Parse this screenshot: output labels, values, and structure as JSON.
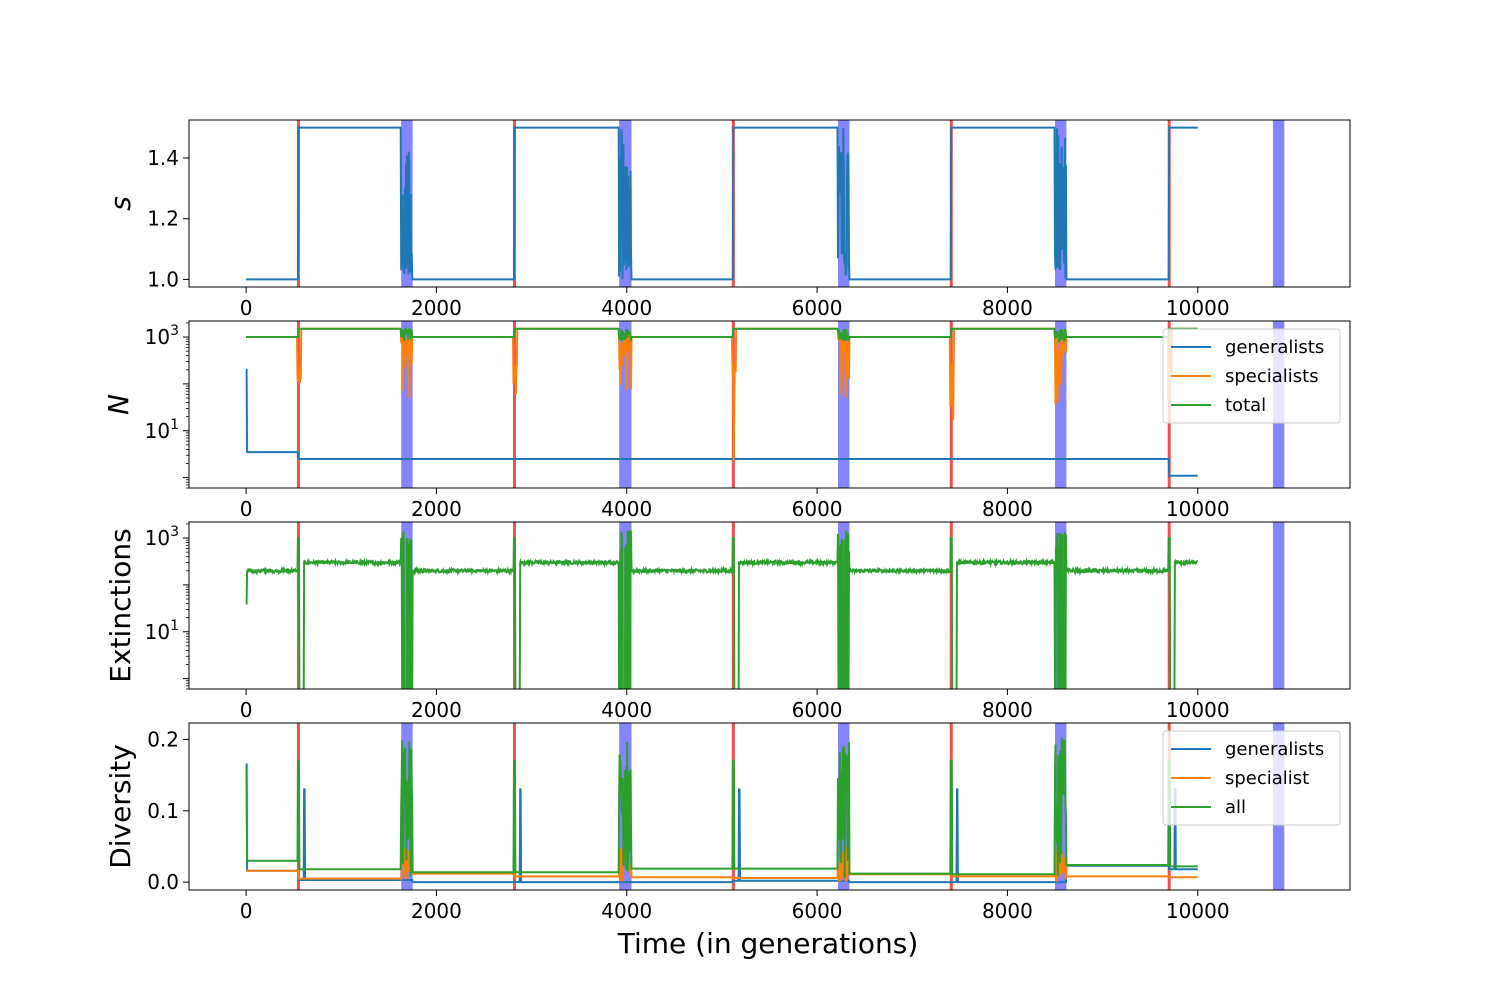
{
  "colors": {
    "generalists": "#1f77b4",
    "specialists": "#ff7f0e",
    "total": "#2ca02c",
    "red_marker": "#f05050",
    "blue_band": "#6666ff"
  },
  "chart_data": [
    {
      "type": "line",
      "id": "s",
      "ylabel": "s",
      "ylabel_italic": true,
      "yscale": "linear",
      "xlim": [
        -600,
        11600
      ],
      "ylim": [
        0.975,
        1.525
      ],
      "yticks": [
        1.0,
        1.2,
        1.4
      ],
      "ytick_labels": [
        "1.0",
        "1.2",
        "1.4"
      ],
      "xticks": [
        0,
        2000,
        4000,
        6000,
        8000,
        10000
      ],
      "xtick_labels": [
        "0",
        "2000",
        "4000",
        "6000",
        "8000",
        "10000"
      ],
      "legend": null,
      "series": [
        {
          "name": "",
          "color_key": "generalists",
          "low": 1.0,
          "high": 1.5,
          "noise_frac": 0.0
        }
      ]
    },
    {
      "type": "line",
      "id": "N",
      "ylabel": "N",
      "ylabel_italic": true,
      "yscale": "log",
      "xlim": [
        -600,
        11600
      ],
      "ylim": [
        0.6,
        2200
      ],
      "yticks": [
        10,
        1000
      ],
      "ytick_labels": [
        "10^1",
        "10^3"
      ],
      "xticks": [
        0,
        2000,
        4000,
        6000,
        8000,
        10000
      ],
      "xtick_labels": [
        "0",
        "2000",
        "4000",
        "6000",
        "8000",
        "10000"
      ],
      "legend": {
        "position": "upper right",
        "entries": [
          "generalists",
          "specialists",
          "total"
        ]
      },
      "series": [
        {
          "name": "generalists",
          "color_key": "generalists",
          "low": 1.5,
          "high": 1.5
        },
        {
          "name": "specialists",
          "color_key": "specialists",
          "low": 1000,
          "high": 1500
        },
        {
          "name": "total",
          "color_key": "total",
          "low": 1000,
          "high": 1500
        }
      ]
    },
    {
      "type": "line",
      "id": "ext",
      "ylabel": "Extinctions",
      "ylabel_italic": false,
      "yscale": "log",
      "xlim": [
        -600,
        11600
      ],
      "ylim": [
        0.6,
        2200
      ],
      "yticks": [
        10,
        1000
      ],
      "ytick_labels": [
        "10^1",
        "10^3"
      ],
      "xticks": [
        0,
        2000,
        4000,
        6000,
        8000,
        10000
      ],
      "xtick_labels": [
        "0",
        "2000",
        "4000",
        "6000",
        "8000",
        "10000"
      ],
      "legend": null,
      "series": [
        {
          "name": "",
          "color_key": "total",
          "low": 200,
          "high": 300
        }
      ]
    },
    {
      "type": "line",
      "id": "div",
      "ylabel": "Diversity",
      "ylabel_italic": false,
      "yscale": "linear",
      "xlim": [
        -600,
        11600
      ],
      "ylim": [
        -0.011,
        0.223
      ],
      "yticks": [
        0.0,
        0.1,
        0.2
      ],
      "ytick_labels": [
        "0.0",
        "0.1",
        "0.2"
      ],
      "xticks": [
        0,
        2000,
        4000,
        6000,
        8000,
        10000
      ],
      "xtick_labels": [
        "0",
        "2000",
        "4000",
        "6000",
        "8000",
        "10000"
      ],
      "xlabel": "Time (in generations)",
      "legend": {
        "position": "upper right",
        "entries": [
          "generalists",
          "specialist",
          "all"
        ]
      },
      "series": [
        {
          "name": "generalists",
          "color_key": "generalists"
        },
        {
          "name": "specialist",
          "color_key": "specialists"
        },
        {
          "name": "all",
          "color_key": "total"
        }
      ]
    }
  ],
  "red_markers_x": [
    550,
    2820,
    5120,
    7410,
    9700
  ],
  "blue_bands": [
    [
      1630,
      1750
    ],
    [
      3920,
      4050
    ],
    [
      6220,
      6340
    ],
    [
      8500,
      8620
    ],
    [
      10790,
      10910
    ]
  ],
  "segments": {
    "low_phase_starts": [
      1750,
      4050,
      6340,
      8620
    ],
    "high_phase_starts": [
      550,
      2820,
      5120,
      7410,
      9700
    ],
    "end": 10000,
    "generalist_N_low": [
      3.5,
      2.5,
      2.5,
      2.5,
      2.5,
      2.5,
      2.5,
      2.5,
      2.5,
      1.1
    ],
    "diversity_all": [
      0.03,
      0.018,
      0.014,
      0.014,
      0.019,
      0.019,
      0.012,
      0.011,
      0.024,
      0.022,
      0.014
    ],
    "diversity_gen": [
      0.016,
      0.003,
      0.0,
      0.0,
      0.0,
      0.002,
      0.0,
      0.0,
      0.023,
      0.018,
      0.0
    ],
    "diversity_spec": [
      0.016,
      0.005,
      0.012,
      0.008,
      0.007,
      0.006,
      0.011,
      0.008,
      0.008,
      0.007,
      0.011
    ]
  }
}
